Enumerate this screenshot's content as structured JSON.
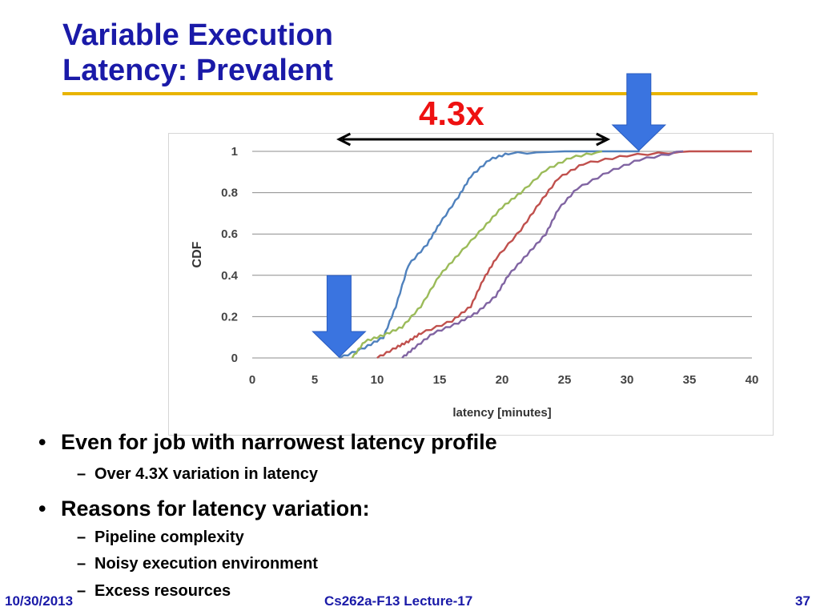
{
  "slide": {
    "title_line1": "Variable Execution",
    "title_line2": "Latency: Prevalent",
    "callout": "4.3x",
    "bullets": [
      {
        "text": "Even for job with narrowest latency profile",
        "sub": [
          "Over 4.3X variation in latency"
        ]
      },
      {
        "text": "Reasons for latency variation:",
        "sub": [
          "Pipeline complexity",
          "Noisy execution environment",
          "Excess resources"
        ]
      }
    ],
    "footer": {
      "date": "10/30/2013",
      "course": "Cs262a-F13 Lecture-17",
      "page": "37"
    }
  },
  "colors": {
    "title": "#1a1aa8",
    "rule": "#e8b400",
    "callout": "#ee1111",
    "arrow": "#3a74e0"
  },
  "chart_data": {
    "type": "line",
    "title": "",
    "xlabel": "latency [minutes]",
    "ylabel": "CDF",
    "xlim": [
      0,
      40
    ],
    "ylim": [
      0,
      1
    ],
    "xticks": [
      0,
      5,
      10,
      15,
      20,
      25,
      30,
      35,
      40
    ],
    "yticks": [
      0,
      0.2,
      0.4,
      0.6,
      0.8,
      1
    ],
    "grid": "horizontal",
    "legend": "none",
    "series": [
      {
        "color": "#4f81bd",
        "points": [
          [
            7,
            0
          ],
          [
            9,
            0.05
          ],
          [
            10.5,
            0.1
          ],
          [
            11.5,
            0.25
          ],
          [
            12.5,
            0.45
          ],
          [
            14,
            0.55
          ],
          [
            15,
            0.65
          ],
          [
            16.5,
            0.78
          ],
          [
            17.5,
            0.88
          ],
          [
            19,
            0.96
          ],
          [
            20.5,
            0.99
          ],
          [
            25,
            1.0
          ],
          [
            31,
            1.0
          ]
        ]
      },
      {
        "color": "#9bbb59",
        "points": [
          [
            8,
            0.0
          ],
          [
            9,
            0.08
          ],
          [
            10.5,
            0.11
          ],
          [
            12,
            0.15
          ],
          [
            13.5,
            0.25
          ],
          [
            15,
            0.4
          ],
          [
            16.5,
            0.5
          ],
          [
            18.5,
            0.63
          ],
          [
            20,
            0.73
          ],
          [
            21.5,
            0.8
          ],
          [
            23.5,
            0.91
          ],
          [
            25.5,
            0.97
          ],
          [
            28,
            1.0
          ]
        ]
      },
      {
        "color": "#c0504d",
        "points": [
          [
            10,
            0
          ],
          [
            11.5,
            0.05
          ],
          [
            12.5,
            0.08
          ],
          [
            13.5,
            0.12
          ],
          [
            16,
            0.18
          ],
          [
            17.5,
            0.25
          ],
          [
            18.5,
            0.38
          ],
          [
            19.5,
            0.48
          ],
          [
            21.5,
            0.62
          ],
          [
            23,
            0.75
          ],
          [
            24.5,
            0.87
          ],
          [
            26.5,
            0.94
          ],
          [
            30,
            0.98
          ],
          [
            35,
            1.0
          ],
          [
            40,
            1.0
          ]
        ]
      },
      {
        "color": "#8064a2",
        "points": [
          [
            12,
            0
          ],
          [
            13,
            0.05
          ],
          [
            14.5,
            0.12
          ],
          [
            16.5,
            0.17
          ],
          [
            18,
            0.22
          ],
          [
            19.5,
            0.3
          ],
          [
            20.5,
            0.4
          ],
          [
            22,
            0.5
          ],
          [
            23.5,
            0.6
          ],
          [
            24.5,
            0.72
          ],
          [
            26,
            0.82
          ],
          [
            28.5,
            0.9
          ],
          [
            31,
            0.96
          ],
          [
            34.5,
            1.0
          ]
        ]
      }
    ],
    "annotations": [
      {
        "type": "span-arrow",
        "x_from": 6.5,
        "x_to": 28,
        "label": "4.3x"
      },
      {
        "type": "marker-arrow",
        "x": 6.5,
        "y": 0
      },
      {
        "type": "marker-arrow",
        "x": 30.5,
        "y": 1
      }
    ]
  }
}
